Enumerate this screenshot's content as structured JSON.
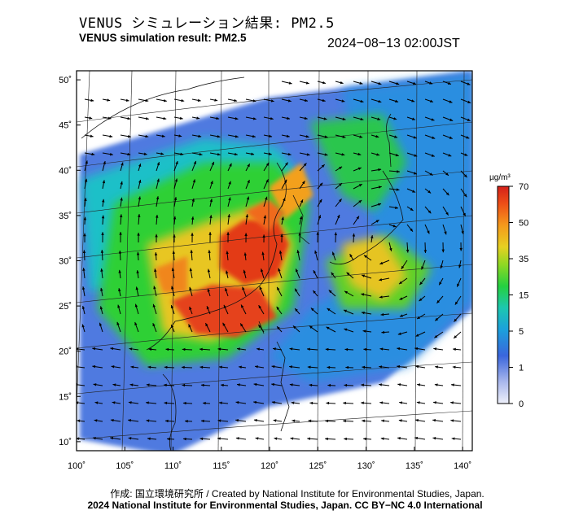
{
  "header": {
    "title_jp": "VENUS シミュレーション結果: PM2.5",
    "title_en": "VENUS simulation result: PM2.5",
    "timestamp": "2024−08−13 02:00JST"
  },
  "map": {
    "lat_labels": [
      "50˚",
      "45˚",
      "40˚",
      "35˚",
      "30˚",
      "25˚",
      "20˚",
      "15˚",
      "10˚"
    ],
    "lon_labels": [
      "100˚",
      "105˚",
      "110˚",
      "115˚",
      "120˚",
      "125˚",
      "130˚",
      "135˚",
      "140˚"
    ],
    "lat_values": [
      50,
      45,
      40,
      35,
      30,
      25,
      20,
      15,
      10
    ],
    "lon_values": [
      100,
      105,
      110,
      115,
      120,
      125,
      130,
      135,
      140
    ],
    "lat_range": [
      9,
      51
    ],
    "lon_range": [
      100,
      141
    ]
  },
  "colorbar": {
    "unit": "µg/m³",
    "tick_labels": [
      "70",
      "50",
      "35",
      "15",
      "5",
      "1",
      "0"
    ],
    "colors": [
      "#d42a1b",
      "#ee5a18",
      "#f5a21c",
      "#d6d52a",
      "#2ed01d",
      "#1bbf8a",
      "#1aa3d8",
      "#1a5fd0",
      "#6c86e0",
      "#e8ecfa"
    ]
  },
  "footer": {
    "credit_line1": "作成: 国立環境研究所 / Created by National Institute for Environmental Studies, Japan.",
    "credit_line2": "2024 National Institute for Environmental Studies, Japan. CC BY−NC 4.0 International"
  }
}
